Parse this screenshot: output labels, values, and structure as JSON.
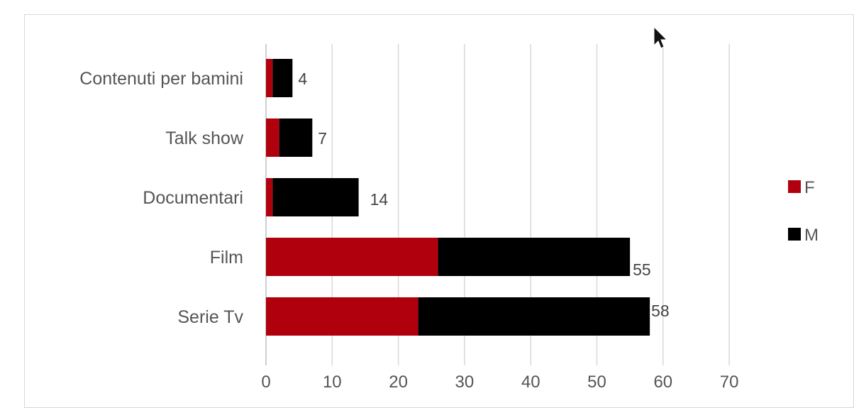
{
  "chart_data": {
    "type": "bar",
    "orientation": "horizontal",
    "stacked": true,
    "categories": [
      "Contenuti per bamini",
      "Talk show",
      "Documentari",
      "Film",
      "Serie Tv"
    ],
    "series": [
      {
        "name": "F",
        "values": [
          1,
          2,
          1,
          26,
          23
        ],
        "color": "#b0000e"
      },
      {
        "name": "M",
        "values": [
          3,
          5,
          13,
          29,
          35
        ],
        "color": "#000000"
      }
    ],
    "totals": [
      "4",
      "7",
      "14",
      "55",
      "58"
    ],
    "xlim": [
      0,
      70
    ],
    "xticks": [
      "0",
      "10",
      "20",
      "30",
      "40",
      "50",
      "60",
      "70"
    ],
    "grid": true,
    "legend_position": "right"
  },
  "cursor_icon": "mouse-pointer-icon"
}
